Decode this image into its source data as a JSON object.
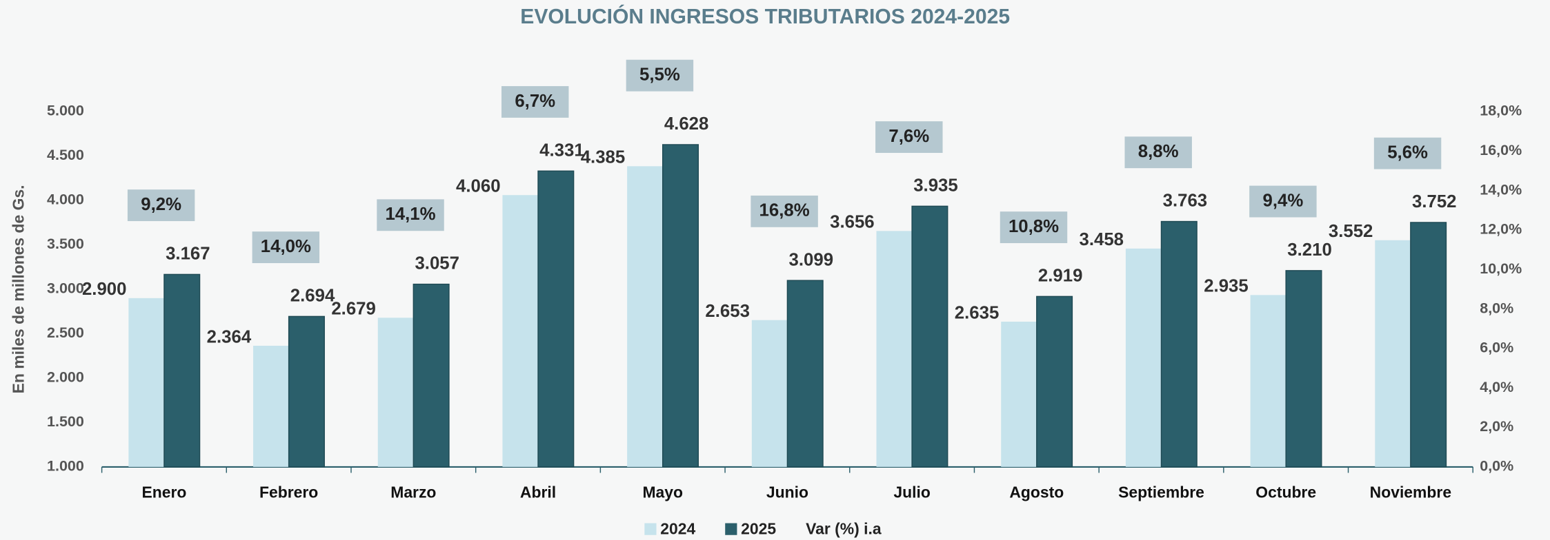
{
  "chart_data": {
    "type": "bar",
    "title": "EVOLUCIÓN INGRESOS TRIBUTARIOS 2024-2025",
    "y_label": "En miles de millones de Gs.",
    "categories": [
      "Enero",
      "Febrero",
      "Marzo",
      "Abril",
      "Mayo",
      "Junio",
      "Julio",
      "Agosto",
      "Septiembre",
      "Octubre",
      "Noviembre"
    ],
    "series": [
      {
        "name": "2024",
        "color": "#c6e3ec",
        "values": [
          2900,
          2364,
          2679,
          4060,
          4385,
          2653,
          3656,
          2635,
          3458,
          2935,
          3552
        ],
        "value_labels": [
          "2.900",
          "2.364",
          "2.679",
          "4.060",
          "4.385",
          "2.653",
          "3.656",
          "2.635",
          "3.458",
          "2.935",
          "3.552"
        ]
      },
      {
        "name": "2025",
        "color": "#2b5f6b",
        "values": [
          3167,
          2694,
          3057,
          4331,
          4628,
          3099,
          3935,
          2919,
          3763,
          3210,
          3752
        ],
        "value_labels": [
          "3.167",
          "2.694",
          "3.057",
          "4.331",
          "4.628",
          "3.099",
          "3.935",
          "2.919",
          "3.763",
          "3.210",
          "3.752"
        ]
      },
      {
        "name": "Var (%) i.a",
        "axis": "y2",
        "color": "#b5c8d0",
        "values": [
          9.2,
          14.0,
          14.1,
          6.7,
          5.5,
          16.8,
          7.6,
          10.8,
          8.8,
          9.4,
          5.6
        ],
        "value_labels": [
          "9,2%",
          "14,0%",
          "14,1%",
          "6,7%",
          "5,5%",
          "16,8%",
          "7,6%",
          "10,8%",
          "8,8%",
          "9,4%",
          "5,6%"
        ]
      }
    ],
    "ylim": [
      1000,
      5000
    ],
    "yticks": [
      {
        "value": 1000,
        "label": "1.000"
      },
      {
        "value": 1500,
        "label": "1.500"
      },
      {
        "value": 2000,
        "label": "2.000"
      },
      {
        "value": 2500,
        "label": "2.500"
      },
      {
        "value": 3000,
        "label": "3.000"
      },
      {
        "value": 3500,
        "label": "3.500"
      },
      {
        "value": 4000,
        "label": "4.000"
      },
      {
        "value": 4500,
        "label": "4.500"
      },
      {
        "value": 5000,
        "label": "5.000"
      }
    ],
    "y2lim": [
      0,
      18
    ],
    "y2ticks": [
      {
        "value": 0,
        "label": "0,0%"
      },
      {
        "value": 2,
        "label": "2,0%"
      },
      {
        "value": 4,
        "label": "4,0%"
      },
      {
        "value": 6,
        "label": "6,0%"
      },
      {
        "value": 8,
        "label": "8,0%"
      },
      {
        "value": 10,
        "label": "10,0%"
      },
      {
        "value": 12,
        "label": "12,0%"
      },
      {
        "value": 14,
        "label": "14,0%"
      },
      {
        "value": 16,
        "label": "16,0%"
      },
      {
        "value": 18,
        "label": "18,0%"
      }
    ],
    "legend": "bottom"
  }
}
